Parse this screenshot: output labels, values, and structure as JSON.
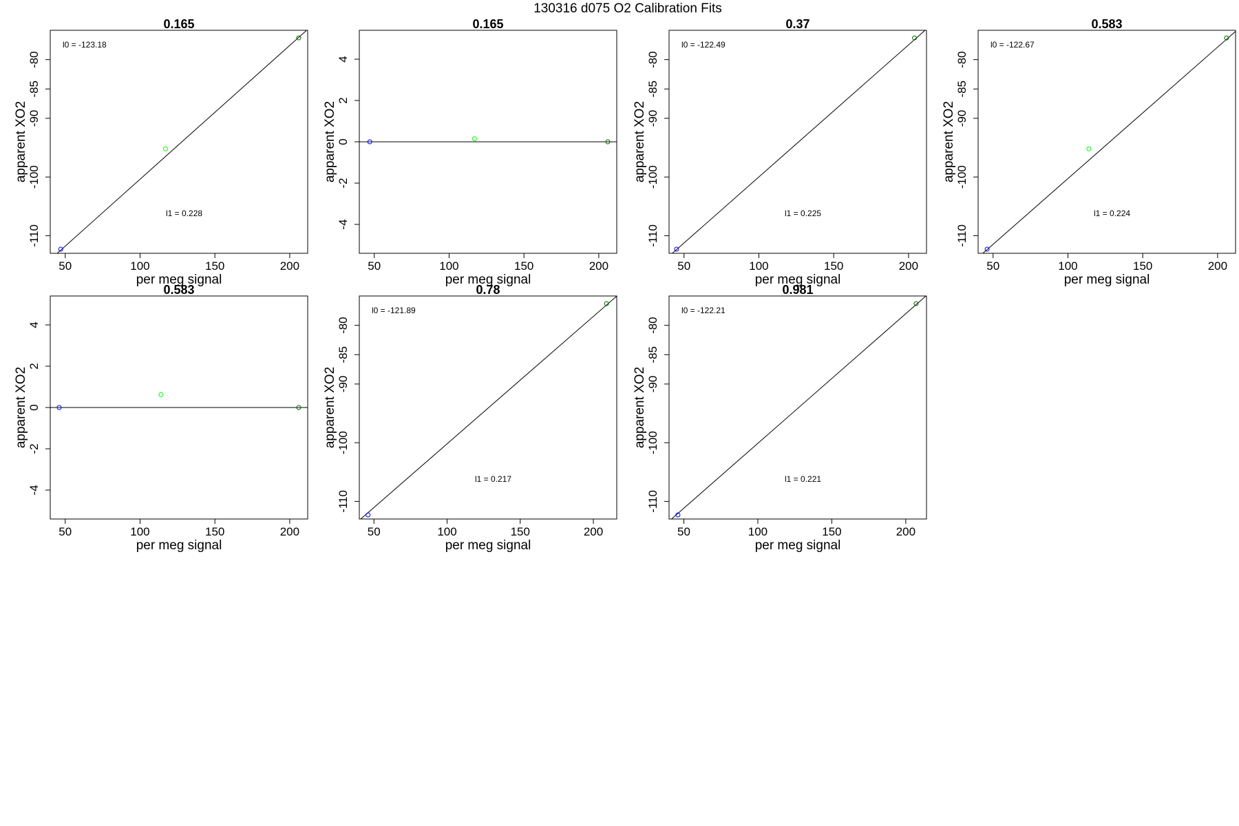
{
  "figure": {
    "title": "130316   d075   O2 Calibration Fits"
  },
  "chart_data": [
    {
      "type": "scatter",
      "title": "0.165",
      "xlabel": "per meg signal",
      "ylabel": "apparent XO2",
      "xlim": [
        40,
        212
      ],
      "ylim": [
        -113,
        -75
      ],
      "xticks": [
        50,
        100,
        150,
        200
      ],
      "yticks": [
        -110,
        -100,
        -90,
        -85,
        -80
      ],
      "points": [
        {
          "x": 47,
          "y": -112.3,
          "color": "#0000ff"
        },
        {
          "x": 117,
          "y": -95.2,
          "color": "#00ff00"
        },
        {
          "x": 206,
          "y": -76.3,
          "color": "#006400"
        }
      ],
      "fit_line": {
        "intercept": -123.18,
        "slope": 0.228
      },
      "annotations": {
        "l0": "l0 =  -123.18",
        "l1": "l1 =  0.228"
      }
    },
    {
      "type": "scatter",
      "title": "0.165",
      "xlabel": "per meg signal",
      "ylabel": "apparent XO2",
      "xlim": [
        40,
        212
      ],
      "ylim": [
        -5.4,
        5.4
      ],
      "xticks": [
        50,
        100,
        150,
        200
      ],
      "yticks": [
        -4,
        -2,
        0,
        2,
        4
      ],
      "points": [
        {
          "x": 47,
          "y": 0.0,
          "color": "#0000ff"
        },
        {
          "x": 117,
          "y": 0.15,
          "color": "#00ff00"
        },
        {
          "x": 206,
          "y": 0.0,
          "color": "#006400"
        }
      ],
      "fit_line": {
        "intercept": 0,
        "slope": 0
      },
      "annotations": {}
    },
    {
      "type": "scatter",
      "title": "0.37",
      "xlabel": "per meg signal",
      "ylabel": "apparent XO2",
      "xlim": [
        40,
        212
      ],
      "ylim": [
        -113,
        -75
      ],
      "xticks": [
        50,
        100,
        150,
        200
      ],
      "yticks": [
        -110,
        -100,
        -90,
        -85,
        -80
      ],
      "points": [
        {
          "x": 45,
          "y": -112.3,
          "color": "#0000ff"
        },
        {
          "x": 204,
          "y": -76.3,
          "color": "#006400"
        }
      ],
      "fit_line": {
        "intercept": -122.49,
        "slope": 0.225
      },
      "annotations": {
        "l0": "l0 =  -122.49",
        "l1": "l1 =  0.225"
      }
    },
    {
      "type": "scatter",
      "title": "0.583",
      "xlabel": "per meg signal",
      "ylabel": "apparent XO2",
      "xlim": [
        40,
        212
      ],
      "ylim": [
        -113,
        -75
      ],
      "xticks": [
        50,
        100,
        150,
        200
      ],
      "yticks": [
        -110,
        -100,
        -90,
        -85,
        -80
      ],
      "points": [
        {
          "x": 46,
          "y": -112.3,
          "color": "#0000ff"
        },
        {
          "x": 114,
          "y": -95.2,
          "color": "#00ff00"
        },
        {
          "x": 206,
          "y": -76.3,
          "color": "#006400"
        }
      ],
      "fit_line": {
        "intercept": -122.67,
        "slope": 0.224
      },
      "annotations": {
        "l0": "l0 =  -122.67",
        "l1": "l1 =  0.224"
      }
    },
    {
      "type": "scatter",
      "title": "0.583",
      "xlabel": "per meg signal",
      "ylabel": "apparent XO2",
      "xlim": [
        40,
        212
      ],
      "ylim": [
        -5.4,
        5.4
      ],
      "xticks": [
        50,
        100,
        150,
        200
      ],
      "yticks": [
        -4,
        -2,
        0,
        2,
        4
      ],
      "points": [
        {
          "x": 46,
          "y": 0.0,
          "color": "#0000ff"
        },
        {
          "x": 114,
          "y": 0.62,
          "color": "#00ff00"
        },
        {
          "x": 206,
          "y": 0.0,
          "color": "#006400"
        }
      ],
      "fit_line": {
        "intercept": 0,
        "slope": 0
      },
      "annotations": {}
    },
    {
      "type": "scatter",
      "title": "0.78",
      "xlabel": "per meg signal",
      "ylabel": "apparent XO2",
      "xlim": [
        40,
        216
      ],
      "ylim": [
        -113,
        -75
      ],
      "xticks": [
        50,
        100,
        150,
        200
      ],
      "yticks": [
        -110,
        -100,
        -90,
        -85,
        -80
      ],
      "points": [
        {
          "x": 46,
          "y": -112.3,
          "color": "#0000ff"
        },
        {
          "x": 209,
          "y": -76.3,
          "color": "#006400"
        }
      ],
      "fit_line": {
        "intercept": -121.89,
        "slope": 0.217
      },
      "annotations": {
        "l0": "l0 =  -121.89",
        "l1": "l1 =  0.217"
      }
    },
    {
      "type": "scatter",
      "title": "0.981",
      "xlabel": "per meg signal",
      "ylabel": "apparent XO2",
      "xlim": [
        40,
        214
      ],
      "ylim": [
        -113,
        -75
      ],
      "xticks": [
        50,
        100,
        150,
        200
      ],
      "yticks": [
        -110,
        -100,
        -90,
        -85,
        -80
      ],
      "points": [
        {
          "x": 46,
          "y": -112.3,
          "color": "#0000ff"
        },
        {
          "x": 207,
          "y": -76.3,
          "color": "#006400"
        }
      ],
      "fit_line": {
        "intercept": -122.21,
        "slope": 0.221
      },
      "annotations": {
        "l0": "l0 =  -122.21",
        "l1": "l1 =  0.221"
      }
    }
  ]
}
